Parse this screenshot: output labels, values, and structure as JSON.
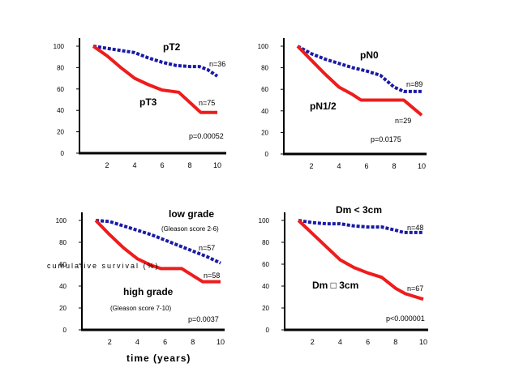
{
  "chart_data": [
    {
      "type": "line",
      "id": "pT",
      "xlim": [
        0,
        10
      ],
      "ylim": [
        0,
        100
      ],
      "xticks": [
        2,
        4,
        6,
        8,
        10
      ],
      "yticks": [
        0,
        20,
        40,
        60,
        80,
        100
      ],
      "series": [
        {
          "name": "pT2",
          "n_label": "n=36",
          "style": "dotted",
          "color": "#1a1aa6",
          "x": [
            1,
            2,
            3,
            4,
            5,
            6,
            7,
            8,
            8.7,
            9.3,
            10
          ],
          "y": [
            100,
            98,
            96,
            94,
            89,
            85,
            82,
            81,
            81,
            78,
            72
          ]
        },
        {
          "name": "pT3",
          "n_label": "n=75",
          "style": "solid",
          "color": "#ee1c1c",
          "x": [
            1,
            2,
            3,
            4,
            5,
            6,
            7.2,
            8.8,
            10
          ],
          "y": [
            100,
            91,
            80,
            70,
            64,
            59,
            57,
            38,
            38
          ]
        }
      ],
      "p_value": "p=0.00052"
    },
    {
      "type": "line",
      "id": "pN",
      "xlim": [
        0,
        10
      ],
      "ylim": [
        0,
        100
      ],
      "xticks": [
        2,
        4,
        6,
        8,
        10
      ],
      "yticks": [
        0,
        20,
        40,
        60,
        80,
        100
      ],
      "series": [
        {
          "name": "pN0",
          "n_label": "n=89",
          "style": "dotted",
          "color": "#1a1aa6",
          "x": [
            1,
            2,
            3,
            4,
            5,
            6,
            7,
            8,
            8.7,
            10
          ],
          "y": [
            100,
            93,
            88,
            84,
            80,
            77,
            73,
            62,
            58,
            58
          ]
        },
        {
          "name": "pN1/2",
          "n_label": "n=29",
          "style": "solid",
          "color": "#ee1c1c",
          "x": [
            1,
            2,
            3,
            4,
            5,
            5.6,
            8.7,
            10
          ],
          "y": [
            100,
            87,
            74,
            62,
            55,
            50,
            50,
            36
          ]
        }
      ],
      "p_value": "p=0.0175"
    },
    {
      "type": "line",
      "id": "grade",
      "xlim": [
        0,
        10
      ],
      "ylim": [
        0,
        100
      ],
      "xticks": [
        2,
        4,
        6,
        8,
        10
      ],
      "yticks": [
        0,
        20,
        40,
        60,
        80,
        100
      ],
      "series": [
        {
          "name": "low grade",
          "subtitle": "(Gleason score 2-6)",
          "n_label": "n=57",
          "style": "dotted",
          "color": "#1a1aa6",
          "x": [
            1,
            2,
            3,
            4,
            5,
            6,
            7,
            8,
            9,
            10
          ],
          "y": [
            100,
            99,
            95,
            91,
            87,
            82,
            77,
            72,
            67,
            61
          ]
        },
        {
          "name": "high grade",
          "subtitle": "(Gleason score 7-10)",
          "n_label": "n=58",
          "style": "solid",
          "color": "#ee1c1c",
          "x": [
            1,
            2,
            3,
            4,
            5,
            5.7,
            7.2,
            8.7,
            10
          ],
          "y": [
            100,
            87,
            75,
            65,
            59,
            56,
            56,
            44,
            44
          ]
        }
      ],
      "p_value": "p=0.0037",
      "xlabel": "time  (years)",
      "ylabel_garbled": "cumulative  survival (%)"
    },
    {
      "type": "line",
      "id": "Dm",
      "xlim": [
        0,
        10
      ],
      "ylim": [
        0,
        100
      ],
      "xticks": [
        2,
        4,
        6,
        8,
        10
      ],
      "yticks": [
        0,
        20,
        40,
        60,
        80,
        100
      ],
      "series": [
        {
          "name": "Dm < 3cm",
          "n_label": "n=48",
          "style": "dotted",
          "color": "#1a1aa6",
          "x": [
            1,
            2,
            3,
            4,
            5,
            6,
            7,
            8,
            8.6,
            10
          ],
          "y": [
            100,
            98,
            97,
            97,
            95,
            94,
            94,
            91,
            89,
            89
          ]
        },
        {
          "name": "Dm □ 3cm",
          "n_label": "n=67",
          "style": "solid",
          "color": "#ee1c1c",
          "x": [
            1,
            2,
            3,
            4,
            5,
            6,
            7,
            8,
            8.7,
            10
          ],
          "y": [
            100,
            88,
            76,
            64,
            57,
            52,
            48,
            38,
            33,
            28
          ]
        }
      ],
      "p_value": "p<0.000001"
    }
  ]
}
